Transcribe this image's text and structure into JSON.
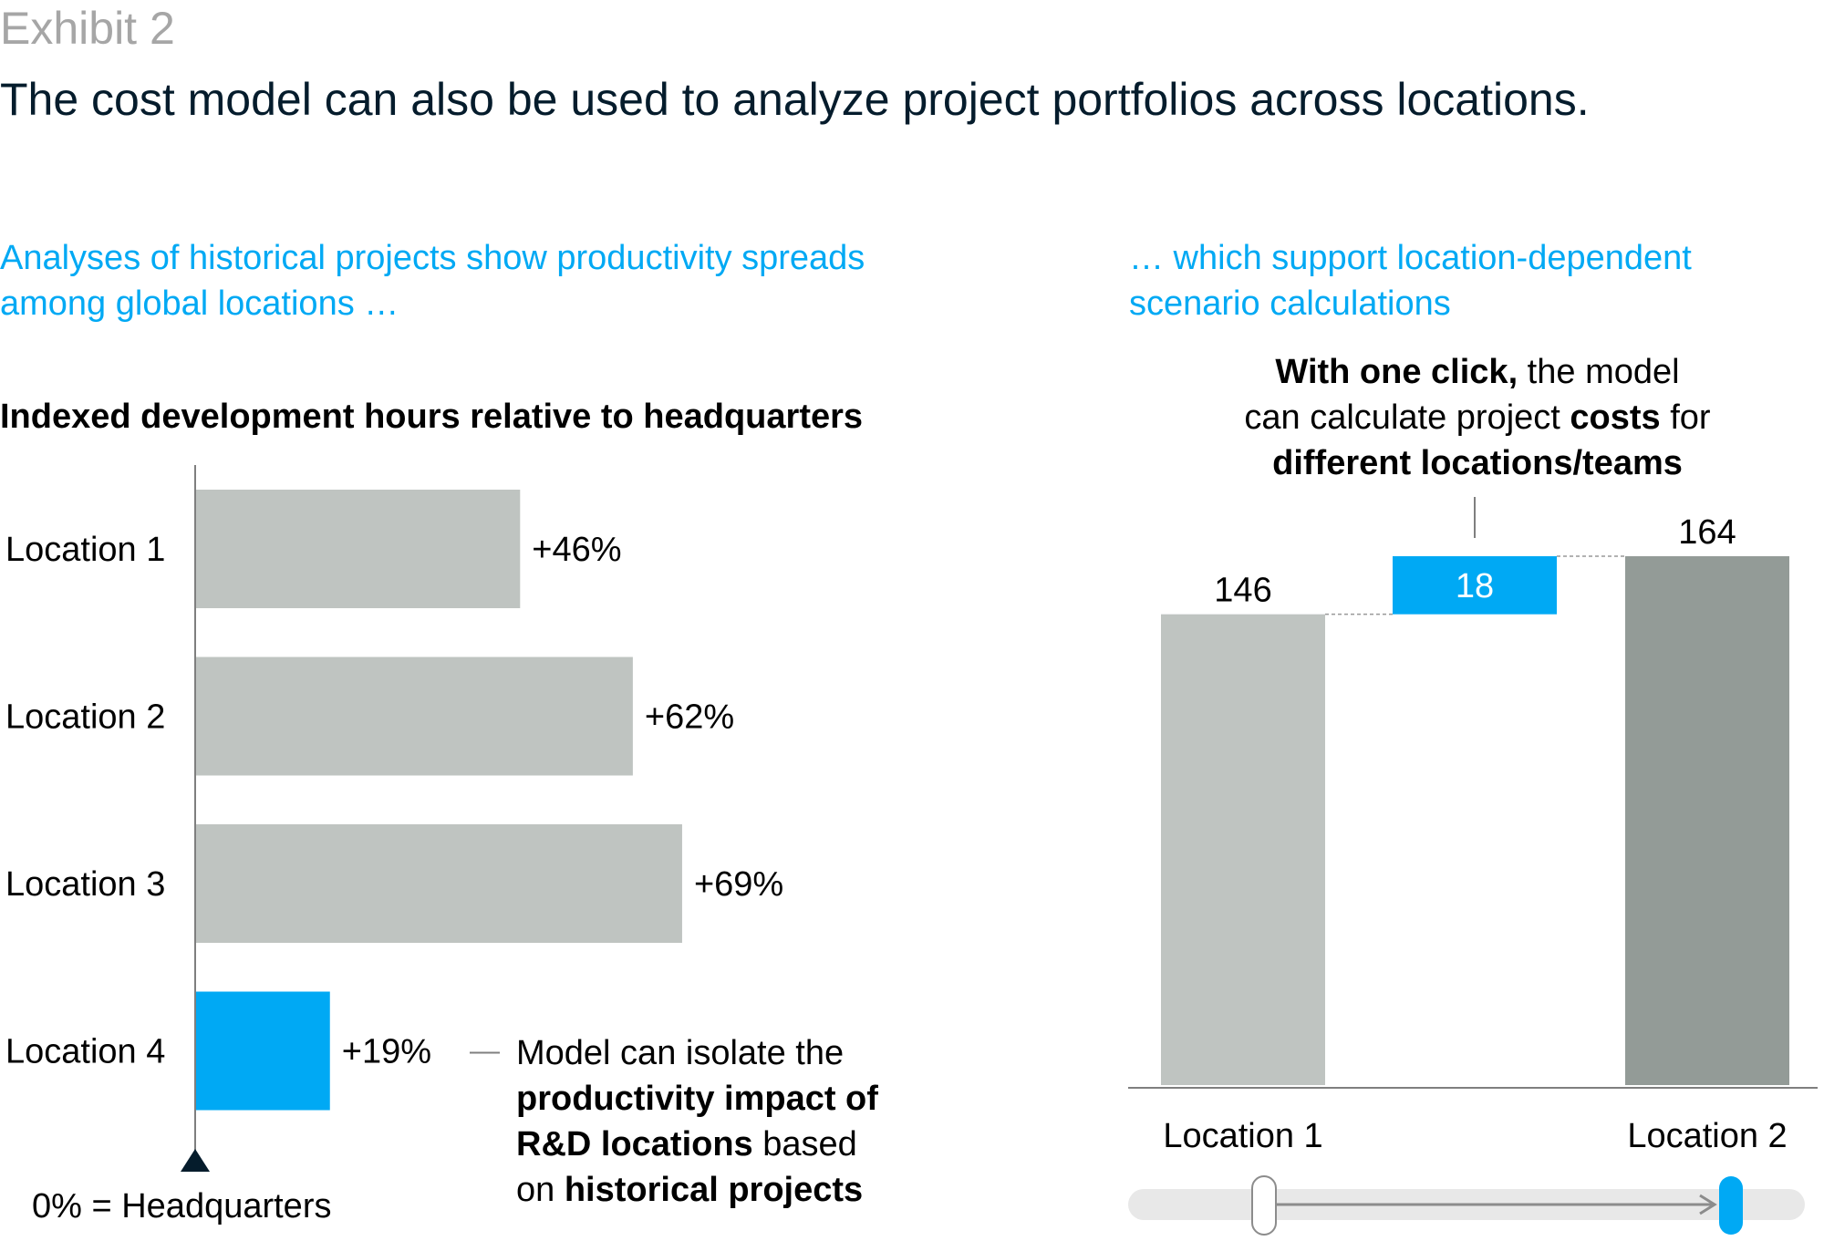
{
  "header": {
    "exhibit": "Exhibit 2",
    "title": "The cost model can also be used to analyze project portfolios across locations."
  },
  "left_panel": {
    "subtitle": "Analyses of historical projects show productivity spreads among global locations …",
    "chart_title": "Indexed development hours relative to headquarters",
    "baseline_label": "0% = Headquarters",
    "callout": {
      "line1": "Model can isolate the",
      "line2_bold": "productivity impact of",
      "line3_bold": "R&D locations",
      "line3_rest": " based",
      "line4_pre": "on ",
      "line4_bold": "historical projects"
    }
  },
  "right_panel": {
    "subtitle": "… which support location-dependent scenario calculations",
    "callout": {
      "l1_bold": "With one click,",
      "l1_rest": " the model",
      "l2_pre": "can calculate project ",
      "l2_bold": "costs",
      "l2_post": " for",
      "l3_bold": "different locations/teams"
    },
    "slider": {
      "from_label": "Location 1",
      "to_label": "Location 2",
      "position": 1
    }
  },
  "colors": {
    "bar_gray": "#bfc4c1",
    "bar_dark_gray": "#939b97",
    "accent_blue": "#00a9f4",
    "navy": "#051c2c"
  },
  "chart_data": [
    {
      "type": "bar",
      "orientation": "horizontal",
      "categories": [
        "Location 1",
        "Location 2",
        "Location 3",
        "Location 4"
      ],
      "values": [
        46,
        62,
        69,
        19
      ],
      "value_labels": [
        "+46%",
        "+62%",
        "+69%",
        "+19%"
      ],
      "highlight": "Location 4",
      "title": "Indexed development hours relative to headquarters",
      "xlim": [
        0,
        100
      ],
      "grid": false
    },
    {
      "type": "bar",
      "subtype": "waterfall",
      "steps": [
        {
          "label": "Location 1",
          "value": 146,
          "kind": "total"
        },
        {
          "label": "",
          "value": 18,
          "kind": "delta"
        },
        {
          "label": "Location 2",
          "value": 164,
          "kind": "total"
        }
      ],
      "ylim": [
        0,
        164
      ],
      "grid": false
    }
  ]
}
